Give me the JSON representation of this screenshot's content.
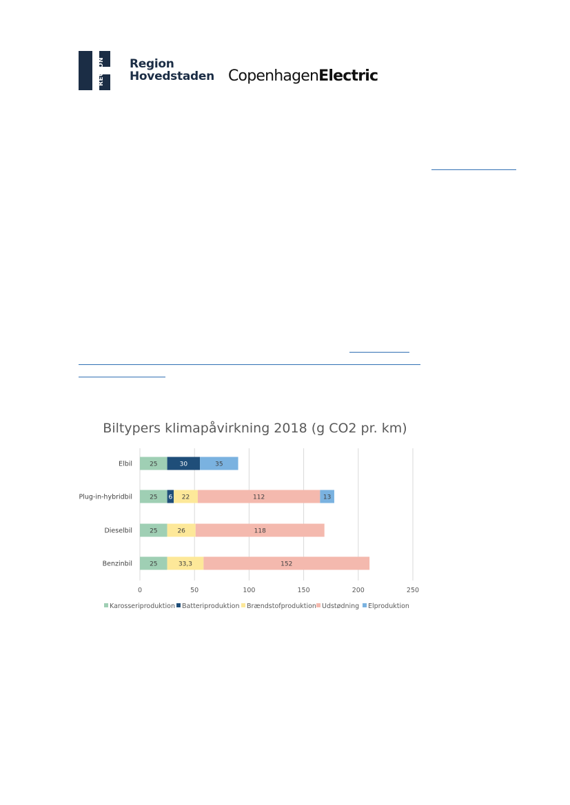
{
  "logos": {
    "region_vertical": "REGION",
    "region_line1": "Region",
    "region_line2": "Hovedstaden",
    "copenhagen_regular": "Copenhagen",
    "copenhagen_bold": "Electric"
  },
  "colors": {
    "navy": "#1b2d45",
    "link": "#2f6fb3"
  },
  "chart_data": {
    "type": "bar",
    "orientation": "horizontal",
    "stacked": true,
    "title": "Biltypers klimapåvirkning 2018 (g CO2 pr. km)",
    "categories": [
      "Elbil",
      "Plug-in-hybridbil",
      "Dieselbil",
      "Benzinbil"
    ],
    "series": [
      {
        "name": "Karosseriproduktion",
        "color": "#9fcfb4",
        "values": [
          25,
          25,
          25,
          25
        ],
        "labels": [
          "25",
          "25",
          "25",
          "25"
        ]
      },
      {
        "name": "Batteriproduktion",
        "color": "#1f4e79",
        "values": [
          30,
          6,
          0,
          0
        ],
        "labels": [
          "30",
          "6",
          "",
          ""
        ]
      },
      {
        "name": "Brændstofproduktion",
        "color": "#fde899",
        "values": [
          0,
          22,
          26,
          33.3
        ],
        "labels": [
          "",
          "22",
          "26",
          "33,3"
        ]
      },
      {
        "name": "Udstødning",
        "color": "#f4b9ae",
        "values": [
          0,
          112,
          118,
          152
        ],
        "labels": [
          "",
          "112",
          "118",
          "152"
        ]
      },
      {
        "name": "Elproduktion",
        "color": "#7ab2e0",
        "values": [
          35,
          13,
          0,
          0
        ],
        "labels": [
          "35",
          "13",
          "",
          ""
        ]
      }
    ],
    "x_ticks": [
      "0",
      "50",
      "100",
      "150",
      "200",
      "250"
    ],
    "xlim": [
      0,
      250
    ],
    "grid": true,
    "legend": "bottom"
  }
}
